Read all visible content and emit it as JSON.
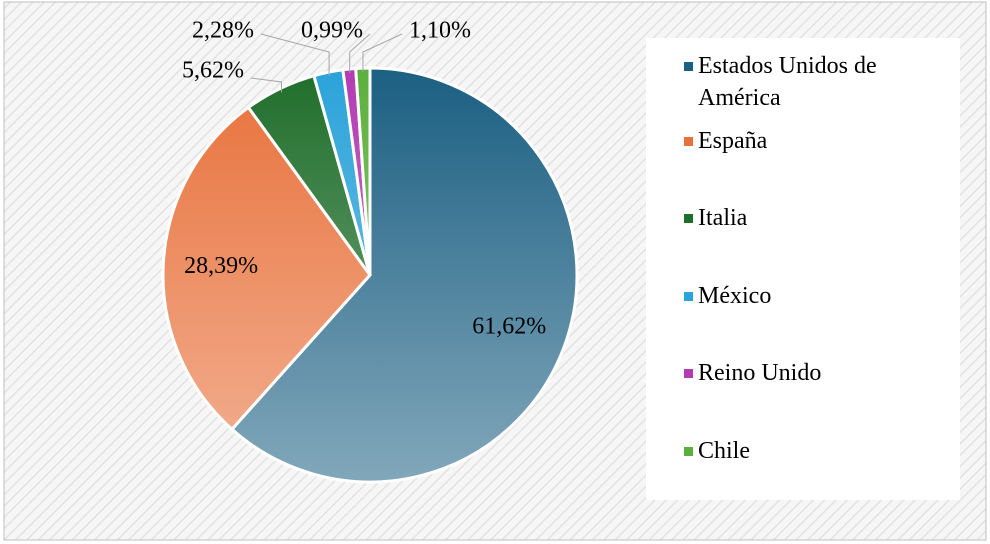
{
  "chart_data": {
    "type": "pie",
    "categories": [
      "Estados Unidos de América",
      "España",
      "Italia",
      "México",
      "Reino Unido",
      "Chile"
    ],
    "values": [
      61.62,
      28.39,
      5.62,
      2.28,
      0.99,
      1.1
    ],
    "value_labels": [
      "61,62%",
      "28,39%",
      "5,62%",
      "2,28%",
      "0,99%",
      "1,10%"
    ],
    "colors": [
      "#1b5f82",
      "#e8713b",
      "#1f6e2b",
      "#2aa3d9",
      "#b23cb2",
      "#5caf3d"
    ],
    "legend": "right"
  }
}
